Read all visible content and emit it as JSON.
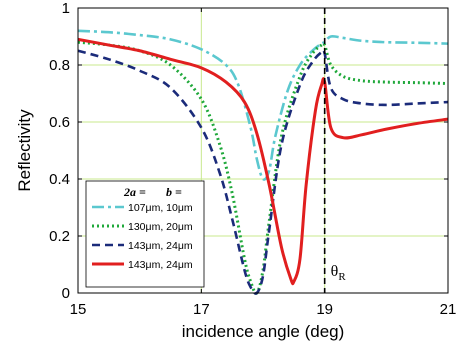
{
  "chart_data": {
    "type": "line",
    "xlabel": "incidence angle (deg)",
    "ylabel": "Reflectivity",
    "xlim": [
      15,
      21
    ],
    "ylim": [
      0,
      1
    ],
    "x_ticks": [
      "15",
      "17",
      "19",
      "21"
    ],
    "y_ticks": [
      "0",
      "0.2",
      "0.4",
      "0.6",
      "0.8",
      "1"
    ],
    "grid": true,
    "legend_position": "bottom-left",
    "legend_header": {
      "a": "2a =",
      "b": "b ="
    },
    "annotation": {
      "text": "θR",
      "base": "θ",
      "sub": "R"
    },
    "vline_x": 19,
    "series": [
      {
        "name": "107μm,   10μm",
        "color": "#5bc8cf",
        "dash": "dashdot",
        "x": [
          15,
          15.5,
          16,
          16.5,
          17,
          17.4,
          17.6,
          17.8,
          17.9,
          18.0,
          18.1,
          18.2,
          18.4,
          18.6,
          18.8,
          18.95,
          19.0,
          19.1,
          19.3,
          19.6,
          20,
          20.5,
          21
        ],
        "y": [
          0.92,
          0.915,
          0.905,
          0.89,
          0.855,
          0.8,
          0.73,
          0.58,
          0.47,
          0.4,
          0.43,
          0.55,
          0.71,
          0.8,
          0.85,
          0.875,
          0.88,
          0.9,
          0.895,
          0.885,
          0.88,
          0.878,
          0.875
        ]
      },
      {
        "name": "130μm,   20μm",
        "color": "#1fa83a",
        "dash": "dotted",
        "x": [
          15,
          15.5,
          16,
          16.5,
          17,
          17.3,
          17.5,
          17.7,
          17.8,
          17.9,
          18.0,
          18.1,
          18.3,
          18.6,
          18.8,
          18.95,
          19.0,
          19.1,
          19.3,
          19.6,
          20,
          20.5,
          21
        ],
        "y": [
          0.88,
          0.87,
          0.85,
          0.8,
          0.68,
          0.52,
          0.35,
          0.12,
          0.04,
          0.0,
          0.08,
          0.25,
          0.55,
          0.76,
          0.84,
          0.87,
          0.87,
          0.8,
          0.76,
          0.745,
          0.74,
          0.738,
          0.735
        ]
      },
      {
        "name": "143μm,   24μm",
        "color": "#1b2b7a",
        "dash": "dashed",
        "x": [
          15,
          15.5,
          16,
          16.5,
          17,
          17.3,
          17.5,
          17.7,
          17.8,
          17.9,
          18.0,
          18.1,
          18.3,
          18.6,
          18.8,
          18.95,
          19.0,
          19.1,
          19.3,
          19.6,
          20,
          20.5,
          21
        ],
        "y": [
          0.85,
          0.82,
          0.78,
          0.72,
          0.58,
          0.42,
          0.26,
          0.08,
          0.02,
          0.0,
          0.06,
          0.22,
          0.52,
          0.73,
          0.81,
          0.845,
          0.84,
          0.72,
          0.68,
          0.665,
          0.66,
          0.665,
          0.67
        ]
      },
      {
        "name": "143μm,   24μm",
        "color": "#e11f1f",
        "dash": "solid",
        "x": [
          15,
          15.5,
          16,
          16.5,
          17,
          17.4,
          17.7,
          17.9,
          18.1,
          18.3,
          18.45,
          18.5,
          18.6,
          18.7,
          18.85,
          18.95,
          19.0,
          19.1,
          19.3,
          19.6,
          20,
          20.5,
          21
        ],
        "y": [
          0.89,
          0.87,
          0.85,
          0.82,
          0.79,
          0.74,
          0.67,
          0.56,
          0.38,
          0.16,
          0.05,
          0.04,
          0.12,
          0.38,
          0.64,
          0.73,
          0.74,
          0.58,
          0.545,
          0.555,
          0.575,
          0.595,
          0.61
        ]
      }
    ]
  }
}
